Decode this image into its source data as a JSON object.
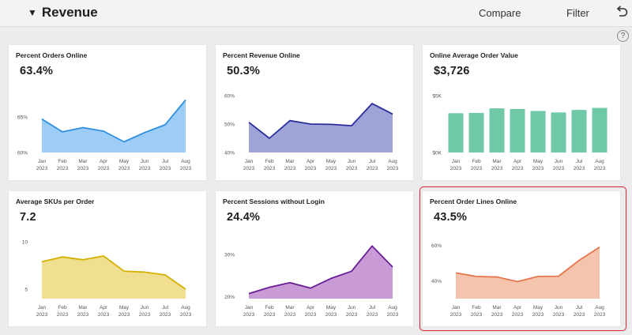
{
  "header": {
    "title": "Revenue",
    "compare_label": "Compare",
    "filter_label": "Filter"
  },
  "help_label": "?",
  "cards": [
    {
      "title": "Percent Orders Online",
      "value": "63.4%",
      "color": "#2e8ee0",
      "fill": "#9dcdf7",
      "chart_type": "area"
    },
    {
      "title": "Percent Revenue Online",
      "value": "50.3%",
      "color": "#2a2f9a",
      "fill": "#9ea3d8",
      "chart_type": "area"
    },
    {
      "title": "Online Average Order Value",
      "value": "$3,726",
      "color": "#6fc9a6",
      "fill": "#6fc9a6",
      "chart_type": "bar"
    },
    {
      "title": "Average SKUs per Order",
      "value": "7.2",
      "color": "#d4b000",
      "fill": "#f0de91",
      "chart_type": "area"
    },
    {
      "title": "Percent Sessions without Login",
      "value": "24.4%",
      "color": "#6a1e97",
      "fill": "#c99bd6",
      "chart_type": "area"
    },
    {
      "title": "Percent Order Lines Online",
      "value": "43.5%",
      "color": "#e8764d",
      "fill": "#f4c4ad",
      "chart_type": "area"
    }
  ],
  "chart_data": [
    {
      "type": "area",
      "categories": [
        "Jan 2023",
        "Feb 2023",
        "Mar 2023",
        "Apr 2023",
        "May 2023",
        "Jun 2023",
        "Jul 2023",
        "Aug 2023"
      ],
      "series": [
        {
          "values": [
            64.7,
            62.9,
            63.5,
            63.0,
            61.5,
            62.8,
            63.9,
            67.4
          ]
        }
      ],
      "ylim": [
        60,
        68
      ],
      "yticks": [
        {
          "value": 60,
          "label": "60%"
        },
        {
          "value": 65,
          "label": "65%"
        }
      ]
    },
    {
      "type": "area",
      "categories": [
        "Jan 2023",
        "Feb 2023",
        "Mar 2023",
        "Apr 2023",
        "May 2023",
        "Jun 2023",
        "Jul 2023",
        "Aug 2023"
      ],
      "series": [
        {
          "values": [
            50.6,
            45.0,
            51.2,
            50.0,
            49.9,
            49.4,
            57.2,
            53.5
          ]
        }
      ],
      "ylim": [
        40,
        60
      ],
      "yticks": [
        {
          "value": 40,
          "label": "40%"
        },
        {
          "value": 50,
          "label": "50%"
        },
        {
          "value": 60,
          "label": "60%"
        }
      ]
    },
    {
      "type": "bar",
      "categories": [
        "Jan 2023",
        "Feb 2023",
        "Mar 2023",
        "Apr 2023",
        "May 2023",
        "Jun 2023",
        "Jul 2023",
        "Aug 2023"
      ],
      "series": [
        {
          "values": [
            3450,
            3480,
            3880,
            3820,
            3650,
            3520,
            3740,
            3920
          ]
        }
      ],
      "ylim": [
        0,
        5000
      ],
      "yticks": [
        {
          "value": 0,
          "label": "$0K"
        },
        {
          "value": 5000,
          "label": "$5K"
        }
      ]
    },
    {
      "type": "area",
      "categories": [
        "Jan 2023",
        "Feb 2023",
        "Mar 2023",
        "Apr 2023",
        "May 2023",
        "Jun 2023",
        "Jul 2023",
        "Aug 2023"
      ],
      "series": [
        {
          "values": [
            7.9,
            8.4,
            8.1,
            8.5,
            6.9,
            6.8,
            6.5,
            5.0
          ]
        }
      ],
      "ylim": [
        4,
        10
      ],
      "yticks": [
        {
          "value": 5,
          "label": "5"
        },
        {
          "value": 10,
          "label": "10"
        }
      ]
    },
    {
      "type": "area",
      "categories": [
        "Jan 2023",
        "Feb 2023",
        "Mar 2023",
        "Apr 2023",
        "May 2023",
        "Jun 2023",
        "Jul 2023",
        "Aug 2023"
      ],
      "series": [
        {
          "values": [
            20.7,
            22.2,
            23.3,
            22.0,
            24.3,
            26.0,
            32.0,
            27.0
          ]
        }
      ],
      "ylim": [
        19.5,
        33
      ],
      "yticks": [
        {
          "value": 20,
          "label": "20%"
        },
        {
          "value": 30,
          "label": "30%"
        }
      ]
    },
    {
      "type": "area",
      "categories": [
        "Jan 2023",
        "Feb 2023",
        "Mar 2023",
        "Apr 2023",
        "May 2023",
        "Jun 2023",
        "Jul 2023",
        "Aug 2023"
      ],
      "series": [
        {
          "values": [
            44.5,
            42.5,
            42.2,
            39.6,
            42.5,
            42.6,
            51.5,
            59.0
          ]
        }
      ],
      "ylim": [
        30,
        62
      ],
      "yticks": [
        {
          "value": 40,
          "label": "40%"
        },
        {
          "value": 60,
          "label": "60%"
        }
      ]
    }
  ]
}
